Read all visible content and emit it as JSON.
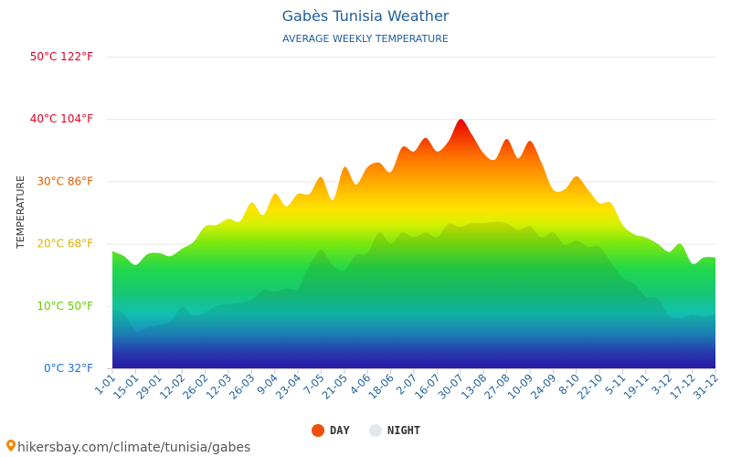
{
  "source_text": "hikersbay.com/climate/tunisia/gabes",
  "chart_data": {
    "type": "area",
    "title": "Gabès Tunisia Weather",
    "subtitle": "AVERAGE WEEKLY TEMPERATURE",
    "ylabel": "TEMPERATURE",
    "ylim": [
      0,
      50
    ],
    "grid": true,
    "legend_position": "bottom-center",
    "y_ticks": [
      {
        "value": 0,
        "label": "0°C 32°F",
        "color": "#1a6fd6"
      },
      {
        "value": 10,
        "label": "10°C 50°F",
        "color": "#66cc00"
      },
      {
        "value": 20,
        "label": "20°C 68°F",
        "color": "#e0b000"
      },
      {
        "value": 30,
        "label": "30°C 86°F",
        "color": "#e05a00"
      },
      {
        "value": 40,
        "label": "40°C 104°F",
        "color": "#e00020"
      },
      {
        "value": 50,
        "label": "50°C 122°F",
        "color": "#e00020"
      }
    ],
    "x_tick_labels": [
      "1-01",
      "15-01",
      "29-01",
      "12-02",
      "26-02",
      "12-03",
      "26-03",
      "9-04",
      "23-04",
      "7-05",
      "21-05",
      "4-06",
      "18-06",
      "2-07",
      "16-07",
      "30-07",
      "13-08",
      "27-08",
      "10-09",
      "24-09",
      "8-10",
      "22-10",
      "5-11",
      "19-11",
      "3-12",
      "17-12",
      "31-12"
    ],
    "weeks": 53,
    "series": [
      {
        "name": "DAY",
        "color": "#f04e0c",
        "values": [
          18.8,
          18.0,
          16.6,
          18.3,
          18.5,
          18.0,
          19.2,
          20.3,
          22.8,
          23.0,
          24.0,
          23.6,
          26.6,
          24.6,
          28.0,
          26.0,
          28.0,
          28.0,
          30.7,
          27.0,
          32.3,
          29.5,
          32.3,
          33.0,
          31.5,
          35.5,
          34.8,
          37.0,
          34.8,
          36.5,
          40.0,
          37.5,
          34.5,
          33.5,
          36.8,
          33.7,
          36.5,
          33.0,
          28.7,
          28.7,
          30.8,
          28.7,
          26.5,
          26.5,
          23.0,
          21.5,
          21.0,
          20.0,
          18.7,
          20.0,
          16.8,
          17.8,
          17.8
        ]
      },
      {
        "name": "NIGHT",
        "color": "#e3e8ef",
        "values": [
          9.4,
          8.8,
          6.0,
          6.5,
          7.0,
          7.5,
          9.8,
          8.5,
          9.0,
          10.0,
          10.3,
          10.5,
          11.0,
          12.5,
          12.3,
          12.8,
          12.8,
          16.5,
          19.0,
          16.5,
          15.8,
          18.2,
          18.5,
          21.8,
          20.0,
          21.8,
          21.0,
          21.8,
          21.0,
          23.2,
          22.7,
          23.3,
          23.3,
          23.5,
          23.3,
          22.2,
          22.8,
          21.0,
          21.8,
          19.8,
          20.5,
          19.5,
          19.5,
          17.0,
          14.5,
          13.5,
          11.5,
          11.2,
          8.5,
          8.0,
          8.6,
          8.3,
          8.8
        ]
      }
    ]
  }
}
